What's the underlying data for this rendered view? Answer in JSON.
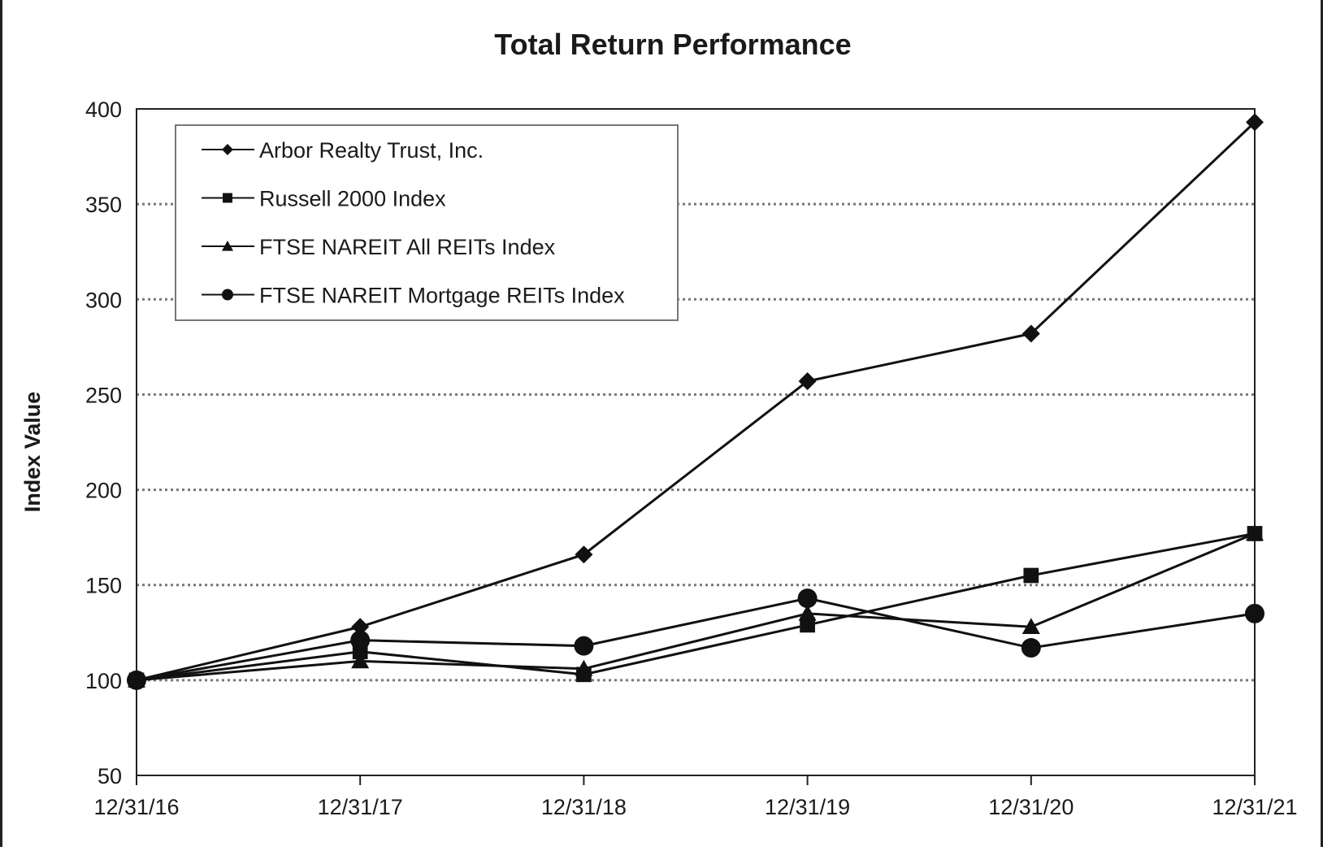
{
  "chart_data": {
    "type": "line",
    "title": "Total Return Performance",
    "xlabel": "",
    "ylabel": "Index Value",
    "x": [
      "12/31/16",
      "12/31/17",
      "12/31/18",
      "12/31/19",
      "12/31/20",
      "12/31/21"
    ],
    "ylim": [
      50,
      400
    ],
    "yticks": [
      50,
      100,
      150,
      200,
      250,
      300,
      350,
      400
    ],
    "grid": "horizontal dotted",
    "legend_position": "top-left",
    "series": [
      {
        "name": "Arbor Realty Trust, Inc.",
        "marker": "diamond",
        "values": [
          100,
          128,
          166,
          257,
          282,
          393
        ]
      },
      {
        "name": "Russell 2000 Index",
        "marker": "square",
        "values": [
          100,
          115,
          103,
          129,
          155,
          177
        ]
      },
      {
        "name": "FTSE NAREIT All REITs Index",
        "marker": "triangle",
        "values": [
          100,
          110,
          106,
          135,
          128,
          177
        ]
      },
      {
        "name": "FTSE NAREIT Mortgage REITs Index",
        "marker": "circle",
        "values": [
          100,
          121,
          118,
          143,
          117,
          135
        ]
      }
    ]
  }
}
